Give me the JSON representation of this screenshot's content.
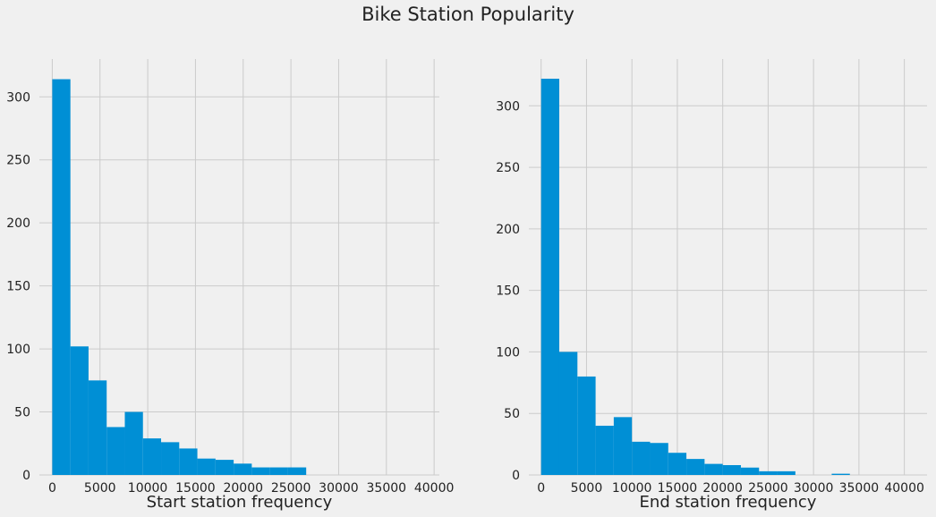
{
  "figure": {
    "title": "Bike Station Popularity"
  },
  "colors": {
    "background": "#f0f0f0",
    "bar": "#008fd5",
    "grid": "#cbcbcb"
  },
  "chart_data": [
    {
      "type": "bar",
      "subtype": "histogram",
      "xlabel": "Start station frequency",
      "ylabel": "",
      "xlim": [
        -1350,
        40550
      ],
      "ylim": [
        0,
        330
      ],
      "xticks": [
        0,
        5000,
        10000,
        15000,
        20000,
        25000,
        30000,
        35000,
        40000
      ],
      "yticks": [
        0,
        50,
        100,
        150,
        200,
        250,
        300
      ],
      "grid": true,
      "bins": [
        {
          "x0": 0,
          "x1": 1900,
          "count": 314
        },
        {
          "x0": 1900,
          "x1": 3800,
          "count": 102
        },
        {
          "x0": 3800,
          "x1": 5700,
          "count": 75
        },
        {
          "x0": 5700,
          "x1": 7600,
          "count": 38
        },
        {
          "x0": 7600,
          "x1": 9500,
          "count": 50
        },
        {
          "x0": 9500,
          "x1": 11400,
          "count": 29
        },
        {
          "x0": 11400,
          "x1": 13300,
          "count": 26
        },
        {
          "x0": 13300,
          "x1": 15200,
          "count": 21
        },
        {
          "x0": 15200,
          "x1": 17100,
          "count": 13
        },
        {
          "x0": 17100,
          "x1": 19000,
          "count": 12
        },
        {
          "x0": 19000,
          "x1": 20900,
          "count": 9
        },
        {
          "x0": 20900,
          "x1": 22800,
          "count": 6
        },
        {
          "x0": 22800,
          "x1": 24700,
          "count": 6
        },
        {
          "x0": 24700,
          "x1": 26600,
          "count": 6
        }
      ]
    },
    {
      "type": "bar",
      "subtype": "histogram",
      "xlabel": "End station frequency",
      "ylabel": "",
      "xlim": [
        -1350,
        42500
      ],
      "ylim": [
        0,
        338
      ],
      "xticks": [
        0,
        5000,
        10000,
        15000,
        20000,
        25000,
        30000,
        35000,
        40000
      ],
      "yticks": [
        0,
        50,
        100,
        150,
        200,
        250,
        300
      ],
      "grid": true,
      "bins": [
        {
          "x0": 0,
          "x1": 2000,
          "count": 322
        },
        {
          "x0": 2000,
          "x1": 4000,
          "count": 100
        },
        {
          "x0": 4000,
          "x1": 6000,
          "count": 80
        },
        {
          "x0": 6000,
          "x1": 8000,
          "count": 40
        },
        {
          "x0": 8000,
          "x1": 10000,
          "count": 47
        },
        {
          "x0": 10000,
          "x1": 12000,
          "count": 27
        },
        {
          "x0": 12000,
          "x1": 14000,
          "count": 26
        },
        {
          "x0": 14000,
          "x1": 16000,
          "count": 18
        },
        {
          "x0": 16000,
          "x1": 18000,
          "count": 13
        },
        {
          "x0": 18000,
          "x1": 20000,
          "count": 9
        },
        {
          "x0": 20000,
          "x1": 22000,
          "count": 8
        },
        {
          "x0": 22000,
          "x1": 24000,
          "count": 6
        },
        {
          "x0": 24000,
          "x1": 26000,
          "count": 3
        },
        {
          "x0": 26000,
          "x1": 28000,
          "count": 3
        },
        {
          "x0": 28000,
          "x1": 30000,
          "count": 0
        },
        {
          "x0": 30000,
          "x1": 32000,
          "count": 0
        },
        {
          "x0": 32000,
          "x1": 34000,
          "count": 1
        }
      ]
    }
  ]
}
